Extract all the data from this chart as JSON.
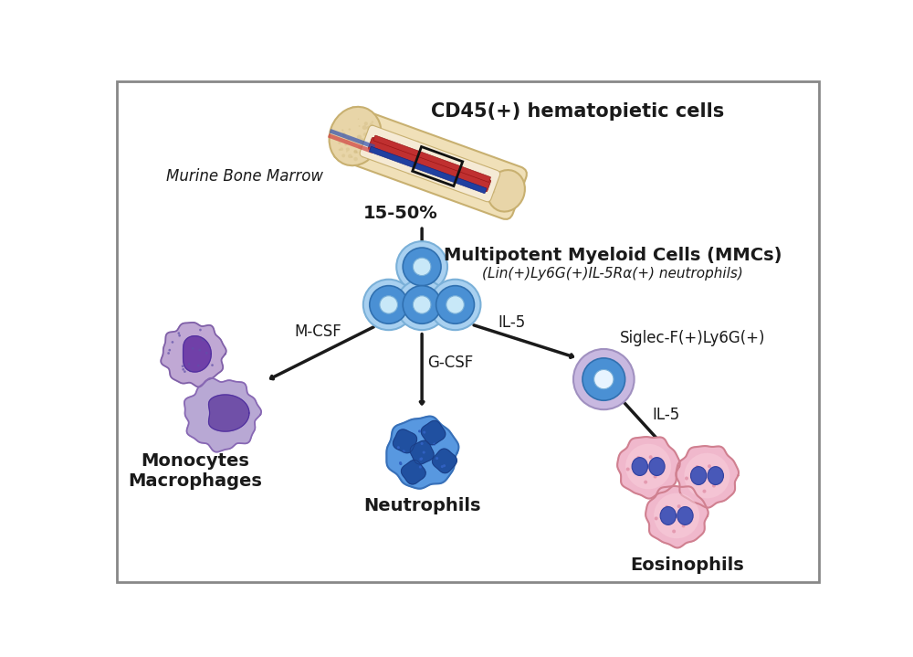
{
  "background_color": "#ffffff",
  "bone_marrow_label": "Murine Bone Marrow",
  "cd45_label": "CD45(+) hematopietic cells",
  "percent_label": "15-50%",
  "mmc_label": "Multipotent Myeloid Cells (MMCs)",
  "mmc_sublabel": "(Lin(+)Ly6G(+)IL-5Rα(+) neutrophils)",
  "il5_label": "IL-5",
  "gcfs_label": "G-CSF",
  "mcsf_label": "M-CSF",
  "siglec_label": "Siglec-F(+)Ly6G(+)",
  "il5_label2": "IL-5",
  "neutrophils_label": "Neutrophils",
  "eosinophils_label": "Eosinophils",
  "monocytes_label": "Monocytes\nMacrophages",
  "arrow_color": "#1a1a1a",
  "text_color": "#1a1a1a",
  "label_fontsize": 14,
  "sublabel_fontsize": 11,
  "small_fontsize": 12,
  "mmc_cell_outer": "#7ab8e8",
  "mmc_cell_mid": "#4a90d4",
  "mmc_cell_inner": "#5ab0e8",
  "mmc_cell_nucleus": "#e8f4ff",
  "siglec_outer": "#c8b8e0",
  "siglec_mid": "#4a90d4",
  "siglec_inner": "#6ab0e0",
  "siglec_nucleus": "#e8f4ff",
  "mono1_outer": "#c8a8d8",
  "mono1_cytoplasm": "#b898c8",
  "mono1_nucleus": "#7848a8",
  "mono2_outer": "#c0b0d8",
  "mono2_cytoplasm": "#b0a0cc",
  "mono2_nucleus": "#8060b8",
  "neutro_outer": "#5090d8",
  "neutro_cytoplasm": "#60a0e8",
  "neutro_nucleus": "#3060b0",
  "eosino_outer": "#e8a0b8",
  "eosino_cytoplasm": "#f0c0d0",
  "eosino_nucleus": "#5060b8"
}
